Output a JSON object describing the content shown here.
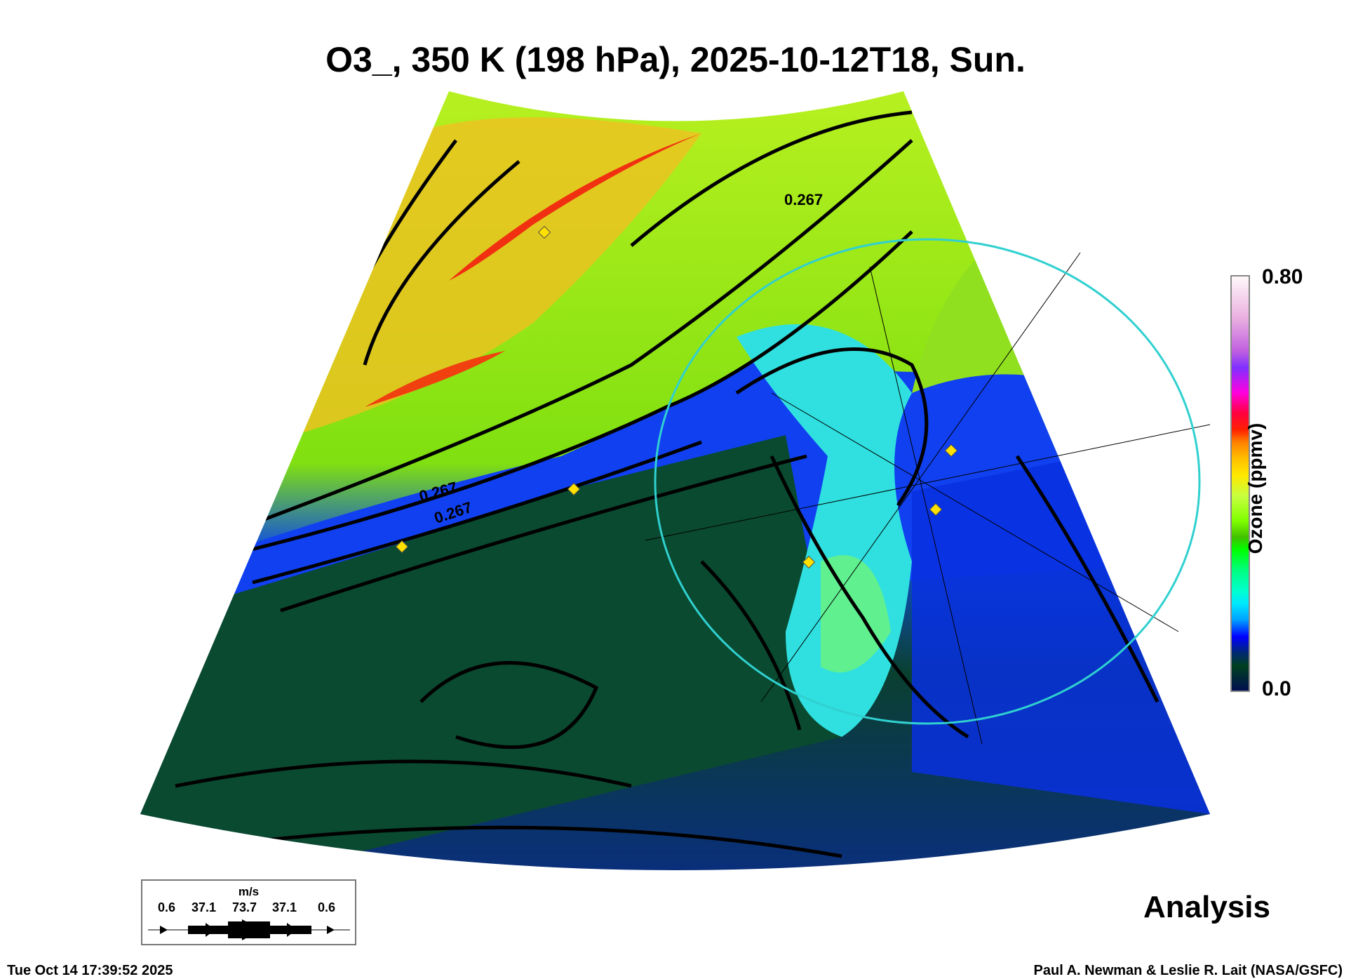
{
  "title": "O3_, 350 K (198 hPa), 2025-10-12T18, Sun.",
  "colorbar": {
    "label": "Ozone (ppmv)",
    "max": "0.80",
    "min": "0.0"
  },
  "contour_labels": [
    "0.267",
    "0.267",
    "0.267"
  ],
  "wind_legend": {
    "unit": "m/s",
    "values": [
      "0.6",
      "37.1",
      "73.7",
      "37.1",
      "0.6"
    ]
  },
  "analysis_label": "Analysis",
  "timestamp": "Tue Oct 14 17:39:52 2025",
  "credit": "Paul A. Newman & Leslie R. Lait (NASA/GSFC)",
  "chart_data": {
    "type": "heatmap",
    "title": "O3_, 350 K (198 hPa), 2025-10-12T18, Sun.",
    "variable": "Ozone (ppmv)",
    "range": [
      0.0,
      0.8
    ],
    "contour_level": 0.267,
    "wind_speed_scale_ms": [
      0.6,
      37.1,
      73.7,
      37.1,
      0.6
    ]
  }
}
